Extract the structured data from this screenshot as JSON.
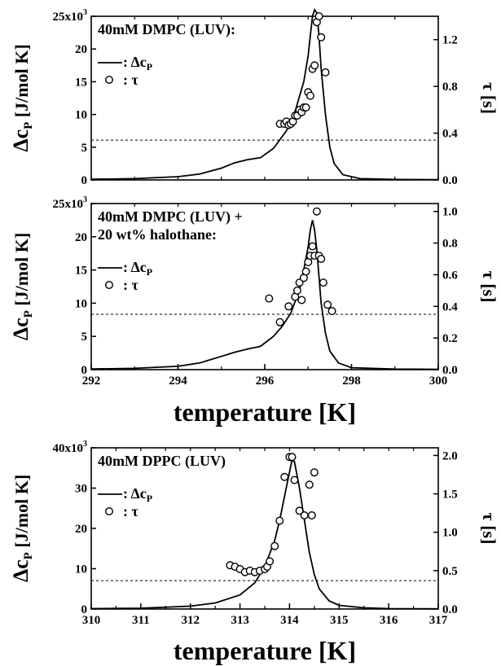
{
  "chart_data": [
    {
      "type": "line",
      "panel": "top",
      "annotation_lines": [
        "40mM DMPC (LUV):"
      ],
      "legend": {
        "line_label": ": Δc",
        "line_sub": "P",
        "marker_label": ":  τ"
      },
      "ylabel_left": "Δc",
      "ylabel_left_sub": "P",
      "ylabel_left_unit": " [J/mol K]",
      "ylabel_right": "τ [s]",
      "xlim": [
        292,
        300
      ],
      "ylim_left": [
        0,
        25000
      ],
      "ylim_right": [
        0,
        1.4
      ],
      "x_ticks": [],
      "xlabel": "",
      "left_ticks": [
        {
          "value": 0,
          "label": "0"
        },
        {
          "value": 5000,
          "label": "5"
        },
        {
          "value": 10000,
          "label": "10"
        },
        {
          "value": 15000,
          "label": "15"
        },
        {
          "value": 20000,
          "label": "20"
        },
        {
          "value": 25000,
          "label": "25x10³"
        }
      ],
      "right_ticks": [
        {
          "value": 0,
          "label": "0.0"
        },
        {
          "value": 0.4,
          "label": "0.4"
        },
        {
          "value": 0.8,
          "label": "0.8"
        },
        {
          "value": 1.2,
          "label": "1.2"
        }
      ],
      "dashed_line_right": 0.34,
      "series": [
        {
          "name": "Δc_P",
          "kind": "line",
          "axis": "left",
          "x": [
            292,
            293,
            294,
            294.5,
            295,
            295.3,
            295.6,
            295.9,
            296.2,
            296.5,
            296.7,
            296.9,
            297.0,
            297.05,
            297.1,
            297.15,
            297.2,
            297.25,
            297.3,
            297.4,
            297.5,
            297.6,
            297.8,
            298.2,
            299,
            300
          ],
          "y": [
            100,
            200,
            500,
            900,
            1800,
            2600,
            3100,
            3400,
            4800,
            7500,
            10500,
            15000,
            19000,
            22000,
            25000,
            26000,
            25500,
            22000,
            17000,
            10000,
            5000,
            2500,
            800,
            200,
            80,
            50
          ]
        },
        {
          "name": "τ",
          "kind": "scatter",
          "axis": "right",
          "x": [
            296.35,
            296.45,
            296.5,
            296.55,
            296.6,
            296.65,
            296.7,
            296.75,
            296.8,
            296.85,
            296.9,
            296.95,
            297.0,
            297.05,
            297.1,
            297.15,
            297.2,
            297.25,
            297.3,
            297.4
          ],
          "y": [
            0.48,
            0.48,
            0.5,
            0.47,
            0.48,
            0.5,
            0.55,
            0.55,
            0.6,
            0.58,
            0.62,
            0.62,
            0.75,
            0.72,
            0.95,
            0.98,
            1.35,
            1.4,
            1.22,
            0.92
          ]
        }
      ]
    },
    {
      "type": "line",
      "panel": "middle",
      "annotation_lines": [
        "40mM DMPC (LUV) +",
        "20 wt% halothane:"
      ],
      "legend": {
        "line_label": ": Δc",
        "line_sub": "P",
        "marker_label": ":  τ"
      },
      "ylabel_left": "Δc",
      "ylabel_left_sub": "P",
      "ylabel_left_unit": " [J/mol K]",
      "ylabel_right": "τ [s]",
      "xlim": [
        292,
        300
      ],
      "ylim_left": [
        0,
        25000
      ],
      "ylim_right": [
        0,
        1.05
      ],
      "xlabel": "temperature [K]",
      "x_ticks": [
        {
          "value": 292,
          "label": "292"
        },
        {
          "value": 294,
          "label": "294"
        },
        {
          "value": 296,
          "label": "296"
        },
        {
          "value": 298,
          "label": "298"
        },
        {
          "value": 300,
          "label": "300"
        }
      ],
      "left_ticks": [
        {
          "value": 0,
          "label": "0"
        },
        {
          "value": 5000,
          "label": "5"
        },
        {
          "value": 10000,
          "label": "10"
        },
        {
          "value": 15000,
          "label": "15"
        },
        {
          "value": 20000,
          "label": "20"
        },
        {
          "value": 25000,
          "label": "25x10³"
        }
      ],
      "right_ticks": [
        {
          "value": 0,
          "label": "0.0"
        },
        {
          "value": 0.2,
          "label": "0.2"
        },
        {
          "value": 0.4,
          "label": "0.4"
        },
        {
          "value": 0.6,
          "label": "0.6"
        },
        {
          "value": 0.8,
          "label": "0.8"
        },
        {
          "value": 1.0,
          "label": "1.0"
        }
      ],
      "dashed_line_right": 0.35,
      "series": [
        {
          "name": "Δc_P",
          "kind": "line",
          "axis": "left",
          "x": [
            292,
            293,
            294,
            294.5,
            295,
            295.3,
            295.6,
            295.9,
            296.2,
            296.4,
            296.6,
            296.8,
            296.9,
            297.0,
            297.05,
            297.1,
            297.15,
            297.2,
            297.25,
            297.3,
            297.4,
            297.5,
            297.7,
            298,
            299,
            300
          ],
          "y": [
            100,
            200,
            500,
            1000,
            2000,
            2600,
            3100,
            3500,
            5000,
            6500,
            8500,
            12000,
            15000,
            18500,
            21000,
            22500,
            21000,
            18000,
            14000,
            10000,
            5500,
            2800,
            1000,
            300,
            80,
            50
          ]
        },
        {
          "name": "τ",
          "kind": "scatter",
          "axis": "right",
          "x": [
            296.1,
            296.35,
            296.55,
            296.7,
            296.75,
            296.8,
            296.85,
            296.9,
            296.95,
            297.0,
            297.05,
            297.1,
            297.15,
            297.2,
            297.25,
            297.3,
            297.35,
            297.45,
            297.55
          ],
          "y": [
            0.45,
            0.3,
            0.4,
            0.46,
            0.5,
            0.55,
            0.44,
            0.58,
            0.62,
            0.68,
            0.72,
            0.78,
            0.72,
            1.0,
            0.72,
            0.7,
            0.55,
            0.41,
            0.37
          ]
        }
      ]
    },
    {
      "type": "line",
      "panel": "bottom",
      "annotation_lines": [
        "40mM DPPC (LUV)"
      ],
      "legend": {
        "line_label": ": Δc",
        "line_sub": "P",
        "marker_label": ":  τ"
      },
      "ylabel_left": "Δc",
      "ylabel_left_sub": "P",
      "ylabel_left_unit": " [J/mol K]",
      "ylabel_right": "τ [s]",
      "xlim": [
        310,
        317
      ],
      "ylim_left": [
        0,
        40000
      ],
      "ylim_right": [
        0,
        2.1
      ],
      "xlabel": "temperature [K]",
      "x_ticks": [
        {
          "value": 310,
          "label": "310"
        },
        {
          "value": 311,
          "label": "311"
        },
        {
          "value": 312,
          "label": "312"
        },
        {
          "value": 313,
          "label": "313"
        },
        {
          "value": 314,
          "label": "314"
        },
        {
          "value": 315,
          "label": "315"
        },
        {
          "value": 316,
          "label": "316"
        },
        {
          "value": 317,
          "label": "317"
        }
      ],
      "left_ticks": [
        {
          "value": 0,
          "label": "0"
        },
        {
          "value": 10000,
          "label": "10"
        },
        {
          "value": 20000,
          "label": "20"
        },
        {
          "value": 30000,
          "label": "30"
        },
        {
          "value": 40000,
          "label": "40x10³"
        }
      ],
      "right_ticks": [
        {
          "value": 0,
          "label": "0.0"
        },
        {
          "value": 0.5,
          "label": "0.5"
        },
        {
          "value": 1.0,
          "label": "1.0"
        },
        {
          "value": 1.5,
          "label": "1.5"
        },
        {
          "value": 2.0,
          "label": "2.0"
        }
      ],
      "dashed_line_right": 0.37,
      "series": [
        {
          "name": "Δc_P",
          "kind": "line",
          "axis": "left",
          "x": [
            310,
            311,
            312,
            312.5,
            313,
            313.3,
            313.5,
            313.7,
            313.8,
            313.9,
            314.0,
            314.05,
            314.1,
            314.2,
            314.3,
            314.4,
            314.5,
            314.6,
            314.8,
            315,
            315.5,
            316,
            317
          ],
          "y": [
            100,
            200,
            700,
            1500,
            3500,
            6500,
            10500,
            17000,
            22000,
            28000,
            34000,
            37000,
            36500,
            30000,
            22000,
            14000,
            8500,
            5000,
            2000,
            900,
            300,
            100,
            50
          ]
        },
        {
          "name": "τ",
          "kind": "scatter",
          "axis": "right",
          "x": [
            312.8,
            312.9,
            313.0,
            313.1,
            313.2,
            313.3,
            313.4,
            313.5,
            313.55,
            313.6,
            313.7,
            313.8,
            313.9,
            314.0,
            314.05,
            314.1,
            314.2,
            314.3,
            314.4,
            314.45,
            314.5
          ],
          "y": [
            0.57,
            0.55,
            0.52,
            0.48,
            0.5,
            0.48,
            0.5,
            0.52,
            0.55,
            0.62,
            0.82,
            1.15,
            1.72,
            1.98,
            1.98,
            1.68,
            1.28,
            1.22,
            1.62,
            1.22,
            1.78
          ]
        }
      ]
    }
  ]
}
